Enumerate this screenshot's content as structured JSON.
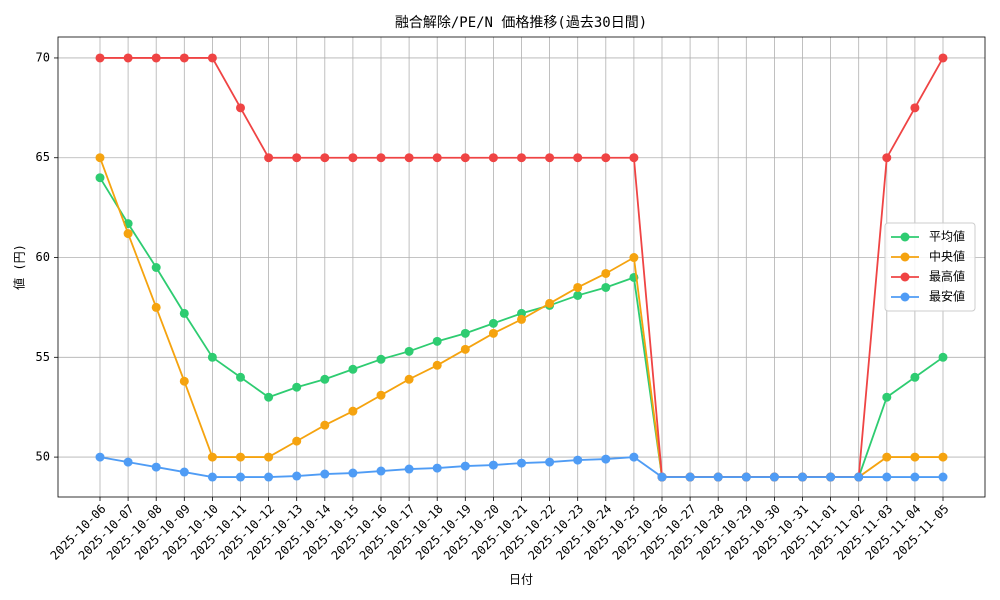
{
  "chart_data": {
    "type": "line",
    "title": "融合解除/PE/N 価格推移(過去30日間)",
    "x_label": "日付",
    "y_label": "値 (円)",
    "categories": [
      "2025-10-06",
      "2025-10-07",
      "2025-10-08",
      "2025-10-09",
      "2025-10-10",
      "2025-10-11",
      "2025-10-12",
      "2025-10-13",
      "2025-10-14",
      "2025-10-15",
      "2025-10-16",
      "2025-10-17",
      "2025-10-18",
      "2025-10-19",
      "2025-10-20",
      "2025-10-21",
      "2025-10-22",
      "2025-10-23",
      "2025-10-24",
      "2025-10-25",
      "2025-10-26",
      "2025-10-27",
      "2025-10-28",
      "2025-10-29",
      "2025-10-30",
      "2025-10-31",
      "2025-11-01",
      "2025-11-02",
      "2025-11-03",
      "2025-11-04",
      "2025-11-05"
    ],
    "series": [
      {
        "name": "平均値",
        "color": "#2ecc71",
        "values": [
          64,
          61.7,
          59.5,
          57.2,
          55,
          54,
          53,
          53.5,
          53.9,
          54.4,
          54.9,
          55.3,
          55.8,
          56.2,
          56.7,
          57.2,
          57.6,
          58.1,
          58.5,
          59,
          49,
          49,
          49,
          49,
          49,
          49,
          49,
          49,
          53,
          54,
          55
        ]
      },
      {
        "name": "中央値",
        "color": "#f5a30f",
        "values": [
          65,
          61.2,
          57.5,
          53.8,
          50,
          50,
          50,
          50.8,
          51.6,
          52.3,
          53.1,
          53.9,
          54.6,
          55.4,
          56.2,
          56.9,
          57.7,
          58.5,
          59.2,
          60,
          49,
          49,
          49,
          49,
          49,
          49,
          49,
          49,
          50,
          50,
          50
        ]
      },
      {
        "name": "最高値",
        "color": "#ef4444",
        "values": [
          70,
          70,
          70,
          70,
          70,
          67.5,
          65,
          65,
          65,
          65,
          65,
          65,
          65,
          65,
          65,
          65,
          65,
          65,
          65,
          65,
          49,
          49,
          49,
          49,
          49,
          49,
          49,
          49,
          65,
          67.5,
          70
        ]
      },
      {
        "name": "最安値",
        "color": "#4f9cf5",
        "values": [
          50,
          49.75,
          49.5,
          49.25,
          49,
          49,
          49,
          49.05,
          49.15,
          49.2,
          49.3,
          49.4,
          49.45,
          49.55,
          49.6,
          49.7,
          49.75,
          49.85,
          49.9,
          50,
          49,
          49,
          49,
          49,
          49,
          49,
          49,
          49,
          49,
          49,
          49
        ]
      }
    ],
    "ylim": [
      48,
      71.05
    ],
    "yticks": [
      50,
      55,
      60,
      65,
      70
    ],
    "grid": true,
    "legend": "center right"
  }
}
